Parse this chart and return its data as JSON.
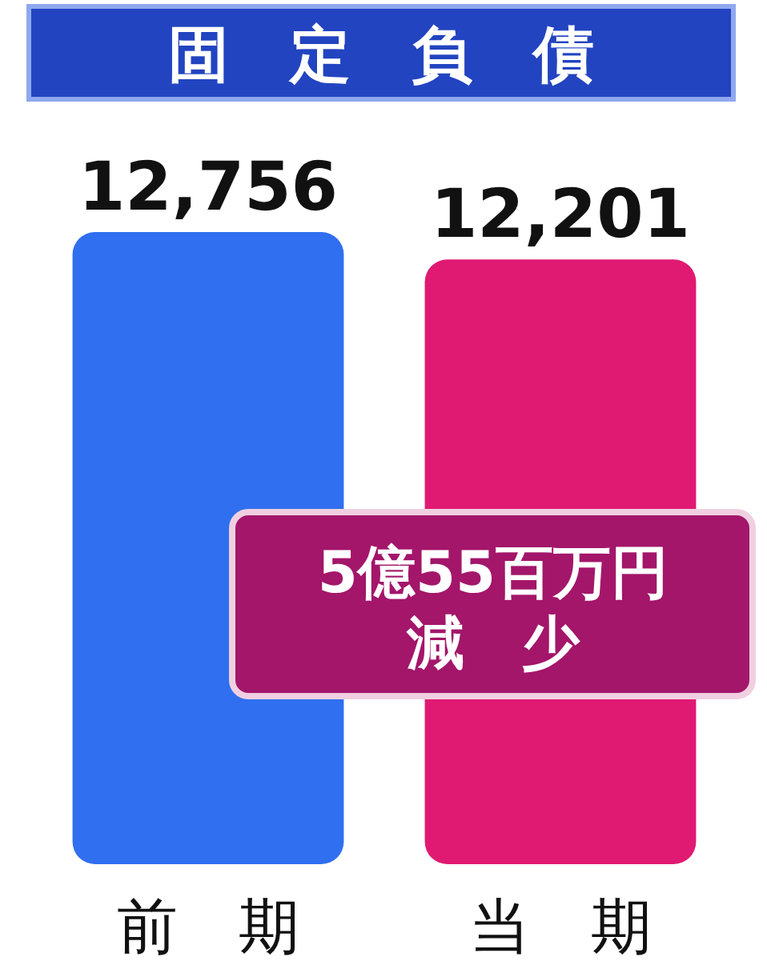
{
  "chart_data": {
    "type": "bar",
    "title": "固　定　負　債",
    "categories": [
      "前　期",
      "当　期"
    ],
    "values": [
      12756,
      12201
    ],
    "colors": [
      "#2f6ff0",
      "#e01a72"
    ],
    "value_labels": [
      "12,756",
      "12,201"
    ],
    "annotations": [
      "5億55百万円",
      "減　少"
    ]
  }
}
